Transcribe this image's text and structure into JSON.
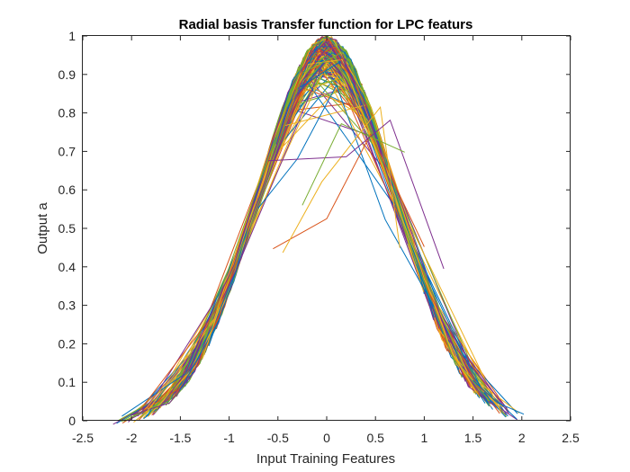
{
  "chart_data": {
    "type": "line",
    "title": "Radial basis Transfer function for LPC featurs",
    "xlabel": "Input Training Features",
    "ylabel": "Output a",
    "xlim": [
      -2.5,
      2.5
    ],
    "ylim": [
      0,
      1
    ],
    "xticks": [
      "-2.5",
      "-2",
      "-1.5",
      "-1",
      "-0.5",
      "0",
      "0.5",
      "1",
      "1.5",
      "2",
      "2.5"
    ],
    "yticks": [
      "0",
      "0.1",
      "0.2",
      "0.3",
      "0.4",
      "0.5",
      "0.6",
      "0.7",
      "0.8",
      "0.9",
      "1"
    ],
    "grid": false,
    "legend": "none",
    "function": "a = exp(-n^2)",
    "colors": [
      "#0072BD",
      "#D95319",
      "#EDB120",
      "#7E2F8E",
      "#77AC30"
    ],
    "series": [
      {
        "x": [
          -2.1,
          -1.45,
          -0.85,
          -0.35,
          0.0,
          0.25,
          0.9,
          1.55
        ],
        "y": [
          0.012,
          0.122,
          0.486,
          0.885,
          1.0,
          0.939,
          0.445,
          0.09
        ]
      },
      {
        "x": [
          -1.92,
          -1.1,
          -0.55,
          -0.1,
          0.0,
          0.5,
          1.05,
          1.55,
          1.78
        ],
        "y": [
          0.025,
          0.298,
          0.738,
          0.99,
          1.0,
          0.779,
          0.332,
          0.09,
          0.042
        ]
      },
      {
        "x": [
          -1.85,
          -1.15,
          -0.6,
          -0.15,
          0.05,
          0.45,
          1.0,
          1.45
        ],
        "y": [
          0.032,
          0.266,
          0.698,
          0.978,
          0.998,
          0.817,
          0.368,
          0.122
        ]
      },
      {
        "x": [
          -1.5,
          -0.95,
          -0.4,
          -0.05,
          0.1,
          0.7,
          1.25,
          1.85
        ],
        "y": [
          0.105,
          0.405,
          0.852,
          0.998,
          0.99,
          0.613,
          0.21,
          0.032
        ]
      },
      {
        "x": [
          -1.3,
          -0.7,
          -0.2,
          0.0,
          0.3,
          0.9,
          1.4
        ],
        "y": [
          0.185,
          0.613,
          0.961,
          1.0,
          0.914,
          0.445,
          0.141
        ]
      },
      {
        "x": [
          -0.7,
          -0.3,
          0.1,
          0.6,
          1.1
        ],
        "y": [
          0.553,
          0.681,
          0.872,
          0.523,
          0.296
        ]
      },
      {
        "x": [
          -0.55,
          0.0,
          0.45,
          1.0
        ],
        "y": [
          0.447,
          0.525,
          0.745,
          0.452
        ]
      },
      {
        "x": [
          -0.45,
          -0.05,
          0.55,
          0.75
        ],
        "y": [
          0.437,
          0.621,
          0.815,
          0.449
        ]
      },
      {
        "x": [
          -0.6,
          0.2,
          0.65,
          1.2
        ],
        "y": [
          0.676,
          0.686,
          0.781,
          0.395
        ]
      },
      {
        "x": [
          -0.25,
          0.15,
          0.8
        ],
        "y": [
          0.56,
          0.772,
          0.698
        ]
      },
      {
        "x": [
          1.5,
          1.75,
          2.02
        ],
        "y": [
          0.105,
          0.047,
          0.017
        ]
      }
    ]
  }
}
